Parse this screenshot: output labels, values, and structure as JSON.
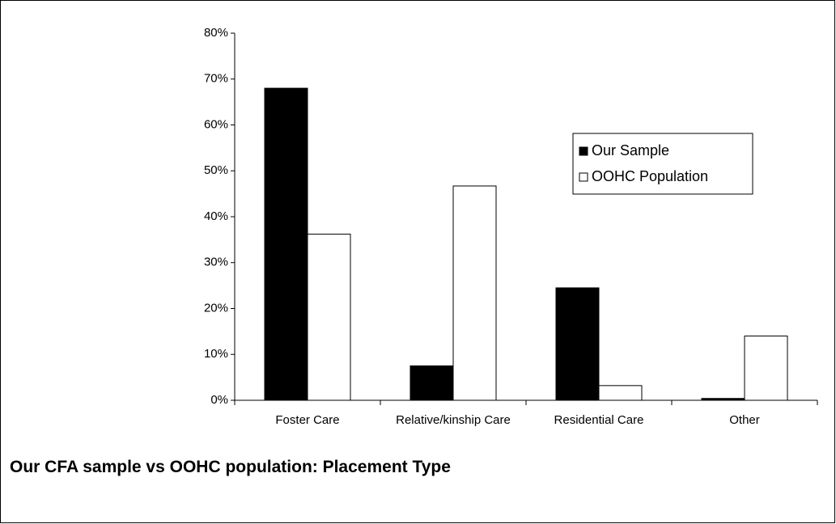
{
  "chart_data": {
    "type": "bar",
    "title": "Our CFA sample vs OOHC population: Placement Type",
    "categories": [
      "Foster Care",
      "Relative/kinship Care",
      "Residential  Care",
      "Other"
    ],
    "series": [
      {
        "name": "Our Sample",
        "color": "#000000",
        "values": [
          68,
          7.5,
          24.5,
          0.4
        ]
      },
      {
        "name": "OOHC Population",
        "color": "#ffffff",
        "values": [
          36.2,
          46.7,
          3.2,
          14
        ]
      }
    ],
    "ylim": [
      0,
      80
    ],
    "yticks": [
      {
        "value": 0,
        "label": "0%"
      },
      {
        "value": 10,
        "label": "10%"
      },
      {
        "value": 20,
        "label": "20%"
      },
      {
        "value": 30,
        "label": "30%"
      },
      {
        "value": 40,
        "label": "40%"
      },
      {
        "value": 50,
        "label": "50%"
      },
      {
        "value": 60,
        "label": "60%"
      },
      {
        "value": 70,
        "label": "70%"
      },
      {
        "value": 80,
        "label": "80%"
      }
    ],
    "grid": false,
    "legend": "right"
  }
}
